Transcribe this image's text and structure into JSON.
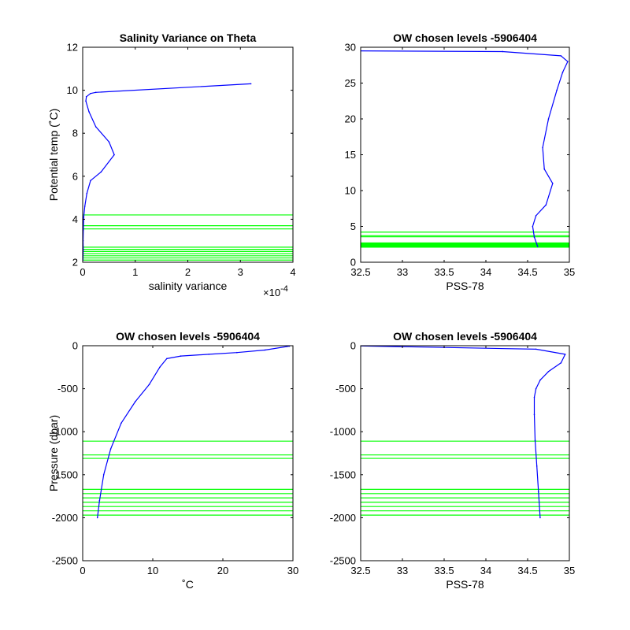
{
  "chart_data": [
    {
      "type": "line",
      "title": "Salinity Variance on Theta",
      "xlabel": "salinity variance",
      "ylabel": "Potential temp (˚C)",
      "x_exponent_label": "×10",
      "x_exponent": "-4",
      "xlim": [
        0,
        0.0004
      ],
      "ylim": [
        2,
        12
      ],
      "xticks": [
        0,
        0.0001,
        0.0002,
        0.0003,
        0.0004
      ],
      "xticklabels": [
        "0",
        "1",
        "2",
        "3",
        "4"
      ],
      "yticks": [
        2,
        4,
        6,
        8,
        10,
        12
      ],
      "yticklabels": [
        "2",
        "4",
        "6",
        "8",
        "10",
        "12"
      ],
      "series": [
        {
          "color": "#0000ff",
          "x": [
            5e-07,
            1e-06,
            8e-07,
            1.2e-06,
            2e-06,
            4e-06,
            8e-06,
            1.5e-05,
            3.5e-05,
            6e-05,
            5e-05,
            2.5e-05,
            1.2e-05,
            6e-06,
            7e-06,
            1.5e-05,
            2.5e-05,
            0.00032
          ],
          "y": [
            2.1,
            2.6,
            3.0,
            3.5,
            4.1,
            4.6,
            5.2,
            5.8,
            6.2,
            7.0,
            7.6,
            8.3,
            9.0,
            9.5,
            9.7,
            9.85,
            9.9,
            10.3
          ]
        }
      ],
      "hlines": {
        "color": "#00ff00",
        "y": [
          2.1,
          2.2,
          2.3,
          2.4,
          2.5,
          2.6,
          2.7,
          3.55,
          3.7,
          4.2
        ]
      }
    },
    {
      "type": "line",
      "title": "OW chosen levels -5906404",
      "xlabel": "PSS-78",
      "ylabel": "",
      "xlim": [
        32.5,
        35
      ],
      "ylim": [
        0,
        30
      ],
      "xticks": [
        32.5,
        33,
        33.5,
        34,
        34.5,
        35
      ],
      "xticklabels": [
        "32.5",
        "33",
        "33.5",
        "34",
        "34.5",
        "35"
      ],
      "yticks": [
        0,
        5,
        10,
        15,
        20,
        25,
        30
      ],
      "yticklabels": [
        "0",
        "5",
        "10",
        "15",
        "20",
        "25",
        "30"
      ],
      "series": [
        {
          "color": "#0000ff",
          "x": [
            34.62,
            34.58,
            34.56,
            34.6,
            34.72,
            34.8,
            34.7,
            34.68,
            34.75,
            34.85,
            34.92,
            34.98,
            34.9,
            34.2,
            32.5
          ],
          "y": [
            2.2,
            3.5,
            5.0,
            6.5,
            8.0,
            11.0,
            13.0,
            16.0,
            20.0,
            24.0,
            26.5,
            28.0,
            28.8,
            29.4,
            29.5
          ]
        }
      ],
      "hlines": {
        "color": "#00ff00",
        "y": [
          2.1,
          2.2,
          2.3,
          2.4,
          2.5,
          2.6,
          2.7,
          3.55,
          3.7,
          4.2
        ]
      }
    },
    {
      "type": "line",
      "title": "OW chosen levels -5906404",
      "xlabel": "˚C",
      "ylabel": "Pressure (dbar)",
      "xlim": [
        0,
        30
      ],
      "ylim": [
        -2500,
        0
      ],
      "xticks": [
        0,
        10,
        20,
        30
      ],
      "xticklabels": [
        "0",
        "10",
        "20",
        "30"
      ],
      "yticks": [
        -2500,
        -2000,
        -1500,
        -1000,
        -500,
        0
      ],
      "yticklabels": [
        "-2500",
        "-2000",
        "-1500",
        "-1000",
        "-500",
        "0"
      ],
      "series": [
        {
          "color": "#0000ff",
          "x": [
            2.1,
            2.4,
            3.0,
            4.0,
            5.5,
            7.5,
            9.5,
            11.0,
            12.0,
            14.0,
            18.0,
            22.0,
            26.0,
            29.5
          ],
          "y": [
            -2000,
            -1800,
            -1500,
            -1200,
            -900,
            -650,
            -450,
            -250,
            -150,
            -120,
            -100,
            -80,
            -50,
            -5
          ]
        }
      ],
      "hlines": {
        "color": "#00ff00",
        "y": [
          -1110,
          -1270,
          -1310,
          -1670,
          -1720,
          -1770,
          -1820,
          -1870,
          -1920,
          -1970
        ]
      }
    },
    {
      "type": "line",
      "title": "OW chosen levels -5906404",
      "xlabel": "PSS-78",
      "ylabel": "",
      "xlim": [
        32.5,
        35
      ],
      "ylim": [
        -2500,
        0
      ],
      "xticks": [
        32.5,
        33,
        33.5,
        34,
        34.5,
        35
      ],
      "xticklabels": [
        "32.5",
        "33",
        "33.5",
        "34",
        "34.5",
        "35"
      ],
      "yticks": [
        -2500,
        -2000,
        -1500,
        -1000,
        -500,
        0
      ],
      "yticklabels": [
        "-2500",
        "-2000",
        "-1500",
        "-1000",
        "-500",
        "0"
      ],
      "series": [
        {
          "color": "#0000ff",
          "x": [
            34.65,
            34.63,
            34.61,
            34.59,
            34.58,
            34.58,
            34.6,
            34.65,
            34.75,
            34.9,
            34.95,
            34.6,
            33.5,
            32.5
          ],
          "y": [
            -2000,
            -1700,
            -1400,
            -1100,
            -800,
            -600,
            -500,
            -400,
            -300,
            -200,
            -100,
            -40,
            -20,
            -3
          ]
        }
      ],
      "hlines": {
        "color": "#00ff00",
        "y": [
          -1110,
          -1270,
          -1310,
          -1670,
          -1720,
          -1770,
          -1820,
          -1870,
          -1920,
          -1970
        ]
      }
    }
  ]
}
